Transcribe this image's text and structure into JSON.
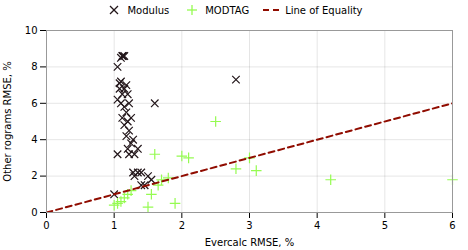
{
  "chart_data": {
    "type": "scatter",
    "xlabel": "Evercalc RMSE, %",
    "ylabel": "Other rograms RMSE, %",
    "series": [
      {
        "name": "Modulus",
        "marker": "x",
        "x": [
          1.0,
          1.05,
          1.05,
          1.05,
          1.08,
          1.08,
          1.1,
          1.1,
          1.1,
          1.12,
          1.12,
          1.12,
          1.13,
          1.15,
          1.15,
          1.15,
          1.15,
          1.18,
          1.18,
          1.18,
          1.2,
          1.2,
          1.2,
          1.22,
          1.22,
          1.22,
          1.25,
          1.25,
          1.28,
          1.28,
          1.3,
          1.3,
          1.35,
          1.35,
          1.4,
          1.4,
          1.45,
          1.5,
          1.55,
          1.6,
          2.8
        ],
        "values": [
          1.0,
          3.2,
          6.2,
          8.0,
          6.8,
          7.1,
          6.0,
          7.2,
          8.5,
          5.2,
          6.5,
          8.6,
          8.6,
          4.8,
          5.8,
          6.8,
          8.6,
          4.2,
          5.5,
          7.0,
          3.5,
          5.0,
          6.5,
          3.2,
          4.5,
          6.0,
          3.8,
          5.2,
          2.2,
          4.0,
          2.0,
          3.2,
          2.2,
          3.5,
          1.5,
          2.2,
          1.5,
          2.0,
          1.8,
          6.0,
          7.3
        ]
      },
      {
        "name": "MODTAG",
        "marker": "+",
        "x": [
          1.0,
          1.05,
          1.1,
          1.15,
          1.2,
          1.25,
          1.5,
          1.55,
          1.6,
          1.65,
          1.7,
          1.8,
          1.9,
          2.0,
          2.1,
          2.5,
          2.8,
          3.0,
          3.1,
          4.2,
          6.0
        ],
        "values": [
          0.4,
          0.5,
          0.6,
          0.8,
          1.0,
          1.2,
          0.3,
          1.0,
          3.2,
          1.5,
          1.8,
          1.9,
          0.5,
          3.1,
          3.0,
          5.0,
          2.4,
          3.0,
          2.3,
          1.8,
          1.8
        ]
      },
      {
        "name": "Line of Equality",
        "type": "line",
        "line_style": "dashed",
        "x": [
          0,
          6
        ],
        "values": [
          0,
          6
        ]
      }
    ],
    "xlim": [
      0,
      6
    ],
    "ylim": [
      0,
      10
    ],
    "xticks": [
      0,
      1,
      2,
      3,
      4,
      5,
      6
    ],
    "yticks": [
      0,
      2,
      4,
      6,
      8,
      10
    ],
    "grid": true,
    "legend": "top"
  }
}
